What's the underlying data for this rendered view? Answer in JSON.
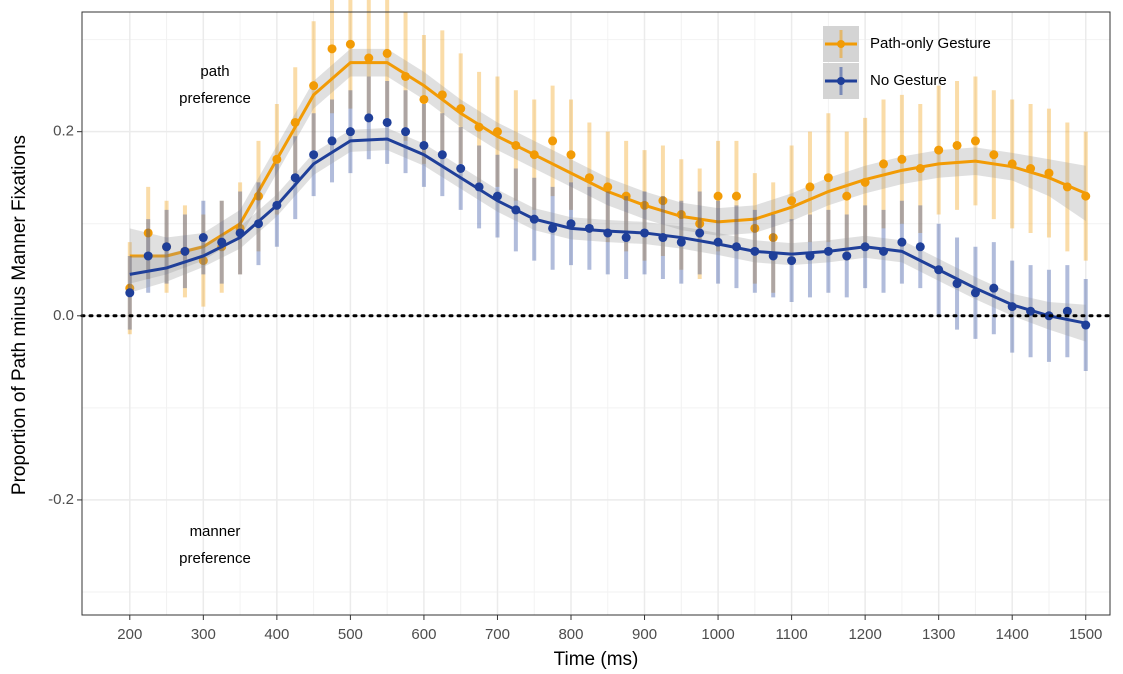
{
  "chart_data": {
    "type": "scatter",
    "xlabel": "Time (ms)",
    "ylabel": "Proportion of Path minus Manner Fixations",
    "xlim": [
      135,
      1533
    ],
    "ylim": [
      -0.325,
      0.33
    ],
    "xticks": [
      200,
      300,
      400,
      500,
      600,
      700,
      800,
      900,
      1000,
      1100,
      1200,
      1300,
      1400,
      1500
    ],
    "yticks": [
      {
        "value": -0.2,
        "label": "-0.2"
      },
      {
        "value": 0,
        "label": "0.0"
      },
      {
        "value": 0.2,
        "label": "0.2"
      }
    ],
    "xminor": [
      250,
      350,
      450,
      550,
      650,
      750,
      850,
      950,
      1050,
      1150,
      1250,
      1350,
      1450
    ],
    "yminor": [
      -0.3,
      -0.1,
      0.1,
      0.3
    ],
    "grid": true,
    "hline": 0,
    "annotations": [
      [
        "path",
        "preference"
      ],
      [
        "manner",
        "preference"
      ]
    ],
    "legend_position": "top-right",
    "x": [
      200,
      225,
      250,
      275,
      300,
      325,
      350,
      375,
      400,
      425,
      450,
      475,
      500,
      525,
      550,
      575,
      600,
      625,
      650,
      675,
      700,
      725,
      750,
      775,
      800,
      825,
      850,
      875,
      900,
      925,
      950,
      975,
      1000,
      1025,
      1050,
      1075,
      1100,
      1125,
      1150,
      1175,
      1200,
      1225,
      1250,
      1275,
      1300,
      1325,
      1350,
      1375,
      1400,
      1425,
      1450,
      1475,
      1500
    ],
    "smooth_x": [
      200,
      250,
      300,
      350,
      400,
      450,
      500,
      550,
      600,
      650,
      700,
      750,
      800,
      850,
      900,
      950,
      1000,
      1050,
      1100,
      1150,
      1200,
      1250,
      1300,
      1350,
      1400,
      1450,
      1500
    ],
    "series": [
      {
        "name": "Path-only Gesture",
        "color": "#f29b05",
        "values": [
          0.03,
          0.09,
          0.075,
          0.07,
          0.06,
          0.075,
          0.095,
          0.13,
          0.17,
          0.21,
          0.25,
          0.29,
          0.295,
          0.28,
          0.285,
          0.26,
          0.235,
          0.24,
          0.225,
          0.205,
          0.2,
          0.185,
          0.175,
          0.19,
          0.175,
          0.15,
          0.14,
          0.13,
          0.12,
          0.125,
          0.11,
          0.1,
          0.13,
          0.13,
          0.095,
          0.085,
          0.125,
          0.14,
          0.15,
          0.13,
          0.145,
          0.165,
          0.17,
          0.16,
          0.18,
          0.185,
          0.19,
          0.175,
          0.165,
          0.16,
          0.155,
          0.14,
          0.13
        ],
        "errors": [
          0.05,
          0.05,
          0.05,
          0.05,
          0.05,
          0.05,
          0.05,
          0.06,
          0.06,
          0.06,
          0.07,
          0.07,
          0.07,
          0.07,
          0.07,
          0.07,
          0.07,
          0.07,
          0.06,
          0.06,
          0.06,
          0.06,
          0.06,
          0.06,
          0.06,
          0.06,
          0.06,
          0.06,
          0.06,
          0.06,
          0.06,
          0.06,
          0.06,
          0.06,
          0.06,
          0.06,
          0.06,
          0.06,
          0.07,
          0.07,
          0.07,
          0.07,
          0.07,
          0.07,
          0.07,
          0.07,
          0.07,
          0.07,
          0.07,
          0.07,
          0.07,
          0.07,
          0.07
        ],
        "smooth": [
          0.065,
          0.065,
          0.075,
          0.1,
          0.17,
          0.24,
          0.275,
          0.275,
          0.25,
          0.22,
          0.195,
          0.175,
          0.155,
          0.135,
          0.12,
          0.108,
          0.102,
          0.105,
          0.118,
          0.135,
          0.148,
          0.158,
          0.165,
          0.168,
          0.162,
          0.15,
          0.133
        ],
        "se": [
          0.03,
          0.02,
          0.015,
          0.015,
          0.015,
          0.015,
          0.015,
          0.015,
          0.015,
          0.015,
          0.015,
          0.015,
          0.015,
          0.015,
          0.015,
          0.015,
          0.015,
          0.015,
          0.015,
          0.015,
          0.015,
          0.015,
          0.015,
          0.015,
          0.015,
          0.02,
          0.03
        ]
      },
      {
        "name": "No Gesture",
        "color": "#1f3f99",
        "values": [
          0.025,
          0.065,
          0.075,
          0.07,
          0.085,
          0.08,
          0.09,
          0.1,
          0.12,
          0.15,
          0.175,
          0.19,
          0.2,
          0.215,
          0.21,
          0.2,
          0.185,
          0.175,
          0.16,
          0.14,
          0.13,
          0.115,
          0.105,
          0.095,
          0.1,
          0.095,
          0.09,
          0.085,
          0.09,
          0.085,
          0.08,
          0.09,
          0.08,
          0.075,
          0.07,
          0.065,
          0.06,
          0.065,
          0.07,
          0.065,
          0.075,
          0.07,
          0.08,
          0.075,
          0.05,
          0.035,
          0.025,
          0.03,
          0.01,
          0.005,
          0.0,
          0.005,
          -0.01
        ],
        "errors": [
          0.04,
          0.04,
          0.04,
          0.04,
          0.04,
          0.045,
          0.045,
          0.045,
          0.045,
          0.045,
          0.045,
          0.045,
          0.045,
          0.045,
          0.045,
          0.045,
          0.045,
          0.045,
          0.045,
          0.045,
          0.045,
          0.045,
          0.045,
          0.045,
          0.045,
          0.045,
          0.045,
          0.045,
          0.045,
          0.045,
          0.045,
          0.045,
          0.045,
          0.045,
          0.045,
          0.045,
          0.045,
          0.045,
          0.045,
          0.045,
          0.045,
          0.045,
          0.045,
          0.045,
          0.05,
          0.05,
          0.05,
          0.05,
          0.05,
          0.05,
          0.05,
          0.05,
          0.05
        ],
        "smooth": [
          0.045,
          0.052,
          0.065,
          0.085,
          0.12,
          0.165,
          0.19,
          0.192,
          0.175,
          0.15,
          0.125,
          0.105,
          0.095,
          0.092,
          0.09,
          0.085,
          0.078,
          0.07,
          0.067,
          0.07,
          0.075,
          0.07,
          0.05,
          0.03,
          0.012,
          0.0,
          -0.008
        ],
        "se": [
          0.02,
          0.015,
          0.012,
          0.012,
          0.012,
          0.012,
          0.012,
          0.012,
          0.012,
          0.012,
          0.012,
          0.012,
          0.012,
          0.012,
          0.012,
          0.012,
          0.012,
          0.012,
          0.012,
          0.012,
          0.012,
          0.012,
          0.012,
          0.012,
          0.012,
          0.015,
          0.02
        ]
      }
    ]
  }
}
